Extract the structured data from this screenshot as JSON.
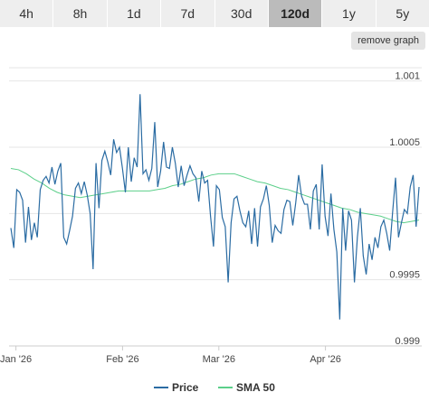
{
  "range_tabs": [
    {
      "label": "4h",
      "active": false
    },
    {
      "label": "8h",
      "active": false
    },
    {
      "label": "1d",
      "active": false
    },
    {
      "label": "7d",
      "active": false
    },
    {
      "label": "30d",
      "active": false
    },
    {
      "label": "120d",
      "active": true
    },
    {
      "label": "1y",
      "active": false
    },
    {
      "label": "5y",
      "active": false
    }
  ],
  "remove_graph_label": "remove graph",
  "colors": {
    "price": "#2b6ca3",
    "sma": "#5ccf8a",
    "grid": "#e6e6e6",
    "axis": "#cccccc"
  },
  "chart_data": {
    "type": "line",
    "ylim": [
      0.999,
      1.0011
    ],
    "y_ticks": [
      {
        "value": 0.999,
        "label": "0.999"
      },
      {
        "value": 0.9995,
        "label": "0.9995"
      },
      {
        "value": 1.0005,
        "label": "1.0005"
      },
      {
        "value": 1.001,
        "label": "1.001"
      }
    ],
    "x_ticks": [
      {
        "day": 2,
        "label": "Jan '26"
      },
      {
        "day": 33,
        "label": "Feb '26"
      },
      {
        "day": 61,
        "label": "Mar '26"
      },
      {
        "day": 92,
        "label": "Apr '26"
      }
    ],
    "xlim": [
      0,
      120
    ],
    "series": [
      {
        "name": "Price",
        "values": [
          0.99989,
          0.99974,
          1.00018,
          1.00016,
          1.0001,
          0.99978,
          1.00005,
          0.9998,
          0.99993,
          0.99982,
          1.00018,
          1.00025,
          1.00028,
          1.00023,
          1.00035,
          1.00022,
          1.00032,
          1.00038,
          0.99982,
          0.99977,
          0.99987,
          0.99998,
          1.00019,
          1.00023,
          1.00015,
          1.00024,
          1.00014,
          1.0,
          0.99958,
          1.00038,
          1.00004,
          1.0004,
          1.00047,
          1.00039,
          1.00029,
          1.00056,
          1.00046,
          1.0005,
          1.00034,
          1.00016,
          1.0005,
          1.00024,
          1.00042,
          1.00035,
          1.0009,
          1.0003,
          1.00033,
          1.00025,
          1.00034,
          1.00069,
          1.0002,
          1.00032,
          1.00054,
          1.00035,
          1.00034,
          1.0005,
          1.00038,
          1.0002,
          1.00036,
          1.00021,
          1.00029,
          1.00036,
          1.0003,
          1.00027,
          1.00009,
          1.00032,
          1.00023,
          1.00025,
          0.99998,
          0.99975,
          1.00021,
          1.00018,
          0.99997,
          0.9999,
          0.99948,
          0.99993,
          1.00011,
          1.00013,
          1.00002,
          0.99993,
          0.9999,
          1.00002,
          0.99977,
          1.00004,
          0.99975,
          1.00005,
          1.00011,
          1.00021,
          1.00006,
          0.99978,
          0.99991,
          0.99987,
          0.99985,
          1.00003,
          1.0001,
          1.00009,
          0.99991,
          1.00008,
          1.00029,
          1.00013,
          1.00007,
          1.00007,
          0.99988,
          1.00017,
          1.00022,
          0.99988,
          1.00037,
          0.99998,
          0.99983,
          1.00015,
          0.99988,
          0.99971,
          0.9992,
          1.00004,
          0.99972,
          1.00002,
          0.99995,
          0.99948,
          0.99982,
          1.00004,
          0.99968,
          0.99954,
          0.99977,
          0.99965,
          0.99982,
          0.99974,
          0.9999,
          0.99995,
          0.99985,
          0.99972,
          1.00001,
          1.00027,
          0.99982,
          0.99993,
          1.00003,
          1.0,
          1.0002,
          1.00029,
          0.9999,
          1.0002
        ]
      },
      {
        "name": "SMA 50",
        "values": [
          1.00034,
          1.00033,
          1.0003,
          1.00026,
          1.00023,
          1.00019,
          1.00016,
          1.00014,
          1.00013,
          1.00012,
          1.00013,
          1.00014,
          1.00015,
          1.00016,
          1.00017,
          1.00017,
          1.00017,
          1.00017,
          1.00017,
          1.00018,
          1.00019,
          1.00021,
          1.00022,
          1.00024,
          1.00026,
          1.00027,
          1.00029,
          1.0003,
          1.0003,
          1.0003,
          1.00028,
          1.00026,
          1.00024,
          1.00023,
          1.00021,
          1.00019,
          1.00018,
          1.00016,
          1.00014,
          1.00012,
          1.0001,
          1.00008,
          1.00006,
          1.00004,
          1.00003,
          1.00001,
          1.0,
          0.99999,
          0.99998,
          0.99996,
          0.99994,
          0.99993,
          0.99994,
          0.99995
        ]
      }
    ],
    "legend": [
      {
        "name": "Price"
      },
      {
        "name": "SMA 50"
      }
    ]
  }
}
